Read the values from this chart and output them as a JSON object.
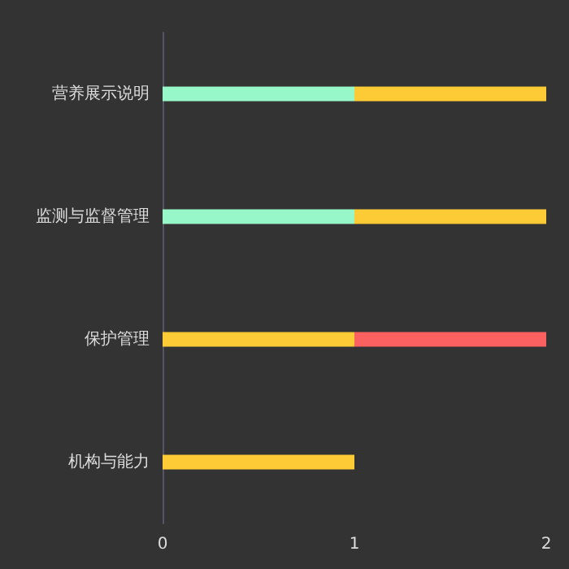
{
  "chart_data": {
    "type": "bar",
    "orientation": "horizontal",
    "stacked": true,
    "categories": [
      "营养展示说明",
      "监测与监督管理",
      "保护管理",
      "机构与能力"
    ],
    "series": [
      {
        "color": "#98f7c8",
        "values": [
          1,
          1,
          null,
          null
        ]
      },
      {
        "color": "#fccb35",
        "values": [
          1,
          1,
          1,
          1
        ]
      },
      {
        "color": "#fc6161",
        "values": [
          null,
          null,
          1,
          null
        ]
      }
    ],
    "xlim": [
      0,
      2
    ],
    "xticks": [
      0,
      1,
      2
    ],
    "grid": false
  }
}
